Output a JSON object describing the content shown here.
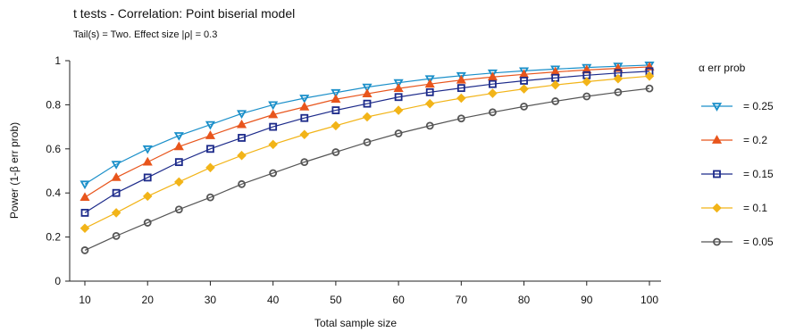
{
  "chart_data": {
    "type": "line",
    "title": "t tests - Correlation: Point biserial model",
    "subtitle": "Tail(s) = Two. Effect size |ρ| = 0.3",
    "xlabel": "Total sample size",
    "ylabel": "Power (1-β err prob)",
    "xlim": [
      10,
      100
    ],
    "ylim": [
      0,
      1
    ],
    "x_ticks": [
      10,
      20,
      30,
      40,
      50,
      60,
      70,
      80,
      90,
      100
    ],
    "y_ticks": [
      0,
      0.2,
      0.4,
      0.6,
      0.8,
      1
    ],
    "y_tick_labels": [
      "0",
      "0.2",
      "0.4",
      "0.6",
      "0.8",
      "1"
    ],
    "grid": false,
    "legend_title": "α err prob",
    "legend_position": "right",
    "x": [
      10,
      15,
      20,
      25,
      30,
      35,
      40,
      45,
      50,
      55,
      60,
      65,
      70,
      75,
      80,
      85,
      90,
      95,
      100
    ],
    "series": [
      {
        "name": "= 0.25",
        "color": "#1a8fc9",
        "marker": "triangle-down",
        "values": [
          0.44,
          0.53,
          0.6,
          0.66,
          0.71,
          0.76,
          0.8,
          0.83,
          0.855,
          0.88,
          0.9,
          0.918,
          0.932,
          0.944,
          0.954,
          0.962,
          0.969,
          0.975,
          0.98
        ]
      },
      {
        "name": "= 0.2",
        "color": "#e8551c",
        "marker": "triangle-up",
        "values": [
          0.38,
          0.47,
          0.54,
          0.61,
          0.66,
          0.71,
          0.755,
          0.79,
          0.825,
          0.85,
          0.874,
          0.894,
          0.912,
          0.926,
          0.938,
          0.949,
          0.958,
          0.965,
          0.972
        ]
      },
      {
        "name": "= 0.15",
        "color": "#1c2a8a",
        "marker": "square",
        "values": [
          0.31,
          0.4,
          0.47,
          0.54,
          0.6,
          0.65,
          0.7,
          0.74,
          0.775,
          0.805,
          0.835,
          0.857,
          0.876,
          0.894,
          0.909,
          0.922,
          0.934,
          0.944,
          0.952
        ]
      },
      {
        "name": "= 0.1",
        "color": "#f2b418",
        "marker": "diamond",
        "values": [
          0.24,
          0.31,
          0.385,
          0.45,
          0.515,
          0.57,
          0.62,
          0.665,
          0.705,
          0.745,
          0.775,
          0.805,
          0.83,
          0.852,
          0.872,
          0.89,
          0.905,
          0.918,
          0.93
        ]
      },
      {
        "name": "= 0.05",
        "color": "#555555",
        "marker": "circle",
        "values": [
          0.14,
          0.205,
          0.265,
          0.325,
          0.38,
          0.44,
          0.49,
          0.54,
          0.585,
          0.63,
          0.67,
          0.705,
          0.738,
          0.766,
          0.792,
          0.816,
          0.838,
          0.857,
          0.874
        ]
      }
    ]
  }
}
